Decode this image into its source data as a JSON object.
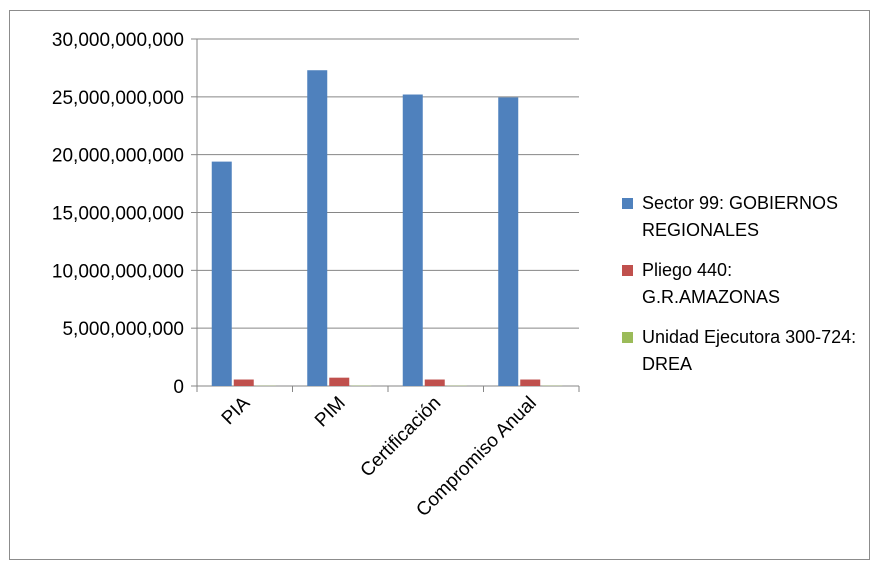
{
  "chart_data": {
    "type": "bar",
    "categories": [
      "PIA",
      "PIM",
      "Certificación",
      "Compromiso Anual"
    ],
    "y_tick_labels": [
      "0",
      "5,000,000,000",
      "10,000,000,000",
      "15,000,000,000",
      "20,000,000,000",
      "25,000,000,000",
      "30,000,000,000"
    ],
    "ylim": [
      0,
      30000000000
    ],
    "grid": true,
    "legend_position": "right",
    "series": [
      {
        "name": "Sector 99: GOBIERNOS REGIONALES",
        "color": "#4f81bd",
        "values": [
          19400000000,
          27300000000,
          25200000000,
          24950000000
        ]
      },
      {
        "name": "Pliego 440: G.R.AMAZONAS",
        "color": "#c0504d",
        "values": [
          560000000,
          720000000,
          560000000,
          560000000
        ]
      },
      {
        "name": "Unidad Ejecutora 300-724: DREA",
        "color": "#9bbb59",
        "values": [
          20000000,
          25000000,
          22000000,
          22000000
        ]
      }
    ]
  }
}
